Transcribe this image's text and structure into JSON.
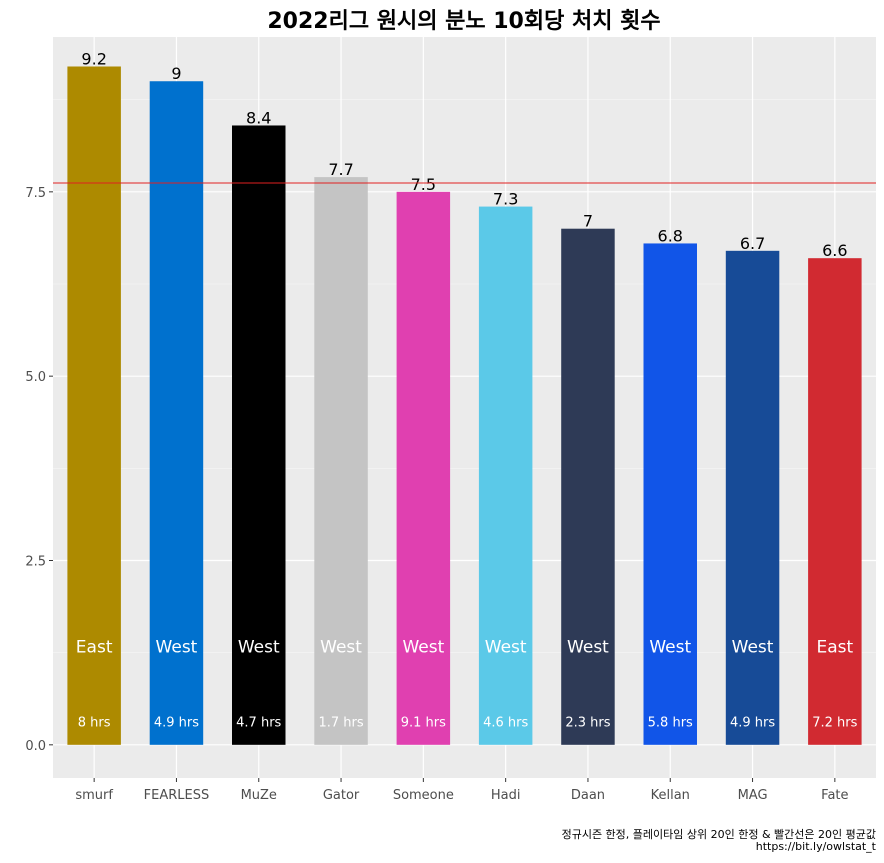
{
  "chart_data": {
    "type": "bar",
    "title": "2022리그 원시의 분노 10회당 처치 횟수",
    "xlabel": "",
    "ylabel": "",
    "ylim": [
      -0.45,
      9.6
    ],
    "y_ticks": [
      "0.0",
      "2.5",
      "5.0",
      "7.5"
    ],
    "y_tick_values": [
      0,
      2.5,
      5.0,
      7.5
    ],
    "grid": true,
    "categories": [
      "smurf",
      "FEARLESS",
      "MuZe",
      "Gator",
      "Someone",
      "Hadi",
      "Daan",
      "Kellan",
      "MAG",
      "Fate"
    ],
    "values": [
      9.2,
      9.0,
      8.4,
      7.7,
      7.5,
      7.3,
      7.0,
      6.8,
      6.7,
      6.6
    ],
    "value_labels": [
      "9.2",
      "9",
      "8.4",
      "7.7",
      "7.5",
      "7.3",
      "7",
      "6.8",
      "6.7",
      "6.6"
    ],
    "division": [
      "East",
      "West",
      "West",
      "West",
      "West",
      "West",
      "West",
      "West",
      "West",
      "East"
    ],
    "hours": [
      "8 hrs",
      "4.9 hrs",
      "4.7 hrs",
      "1.7 hrs",
      "9.1 hrs",
      "4.6 hrs",
      "2.3 hrs",
      "5.8 hrs",
      "4.9 hrs",
      "7.2 hrs"
    ],
    "colors": [
      "#AD8A00",
      "#0071CE",
      "#000000",
      "#C4C4C4",
      "#E040B0",
      "#5BC9E8",
      "#2E3A56",
      "#1155E8",
      "#174B97",
      "#D12A31"
    ],
    "reference_line": {
      "value": 7.62,
      "color": "#E02020"
    }
  },
  "caption": {
    "line1": "정규시즌 한정, 플레이타임 상위 20인 한정 & 빨간선은 20인 평균값",
    "line2": "https://bit.ly/owlstat_t"
  }
}
